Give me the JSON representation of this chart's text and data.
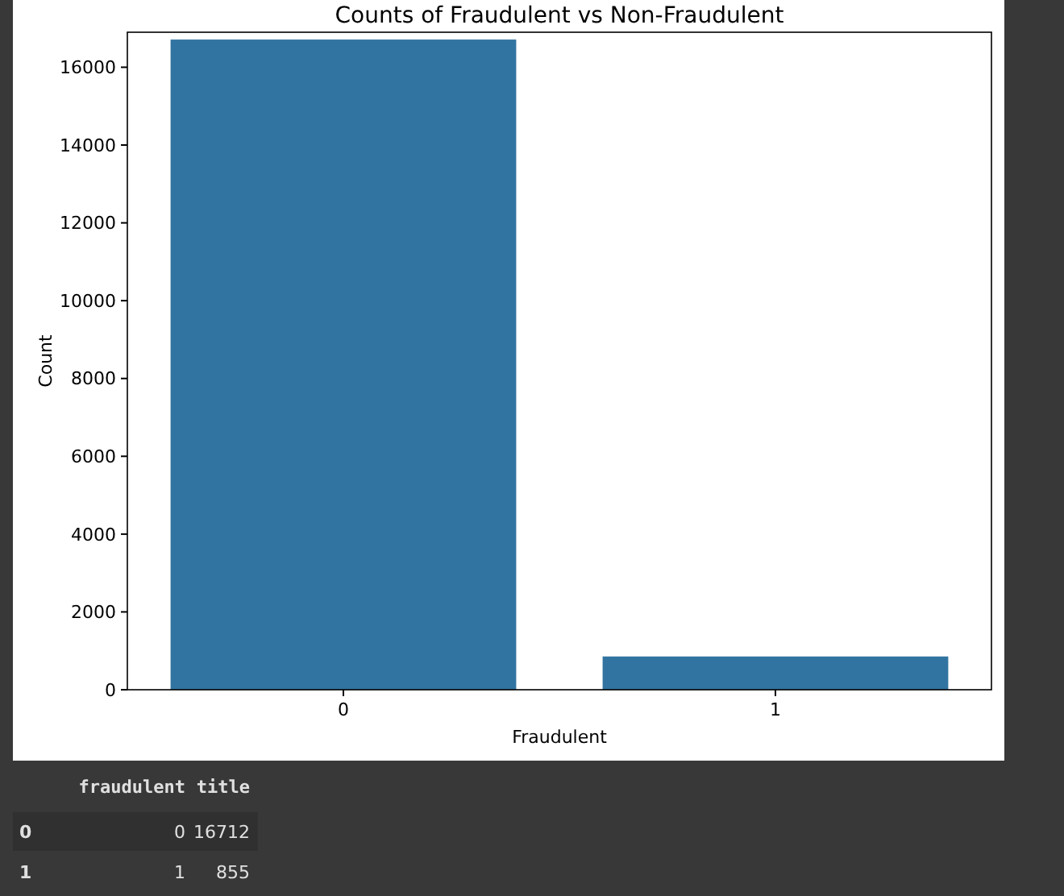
{
  "chart_data": {
    "type": "bar",
    "title": "Counts of Fraudulent vs Non-Fraudulent",
    "xlabel": "Fraudulent",
    "ylabel": "Count",
    "categories": [
      "0",
      "1"
    ],
    "values": [
      16712,
      855
    ],
    "color": "#3274a1",
    "ylim": [
      0,
      16900
    ],
    "yticks": [
      0,
      2000,
      4000,
      6000,
      8000,
      10000,
      12000,
      14000,
      16000
    ],
    "annotations": [
      "fraudulent",
      "title",
      "0",
      "0",
      "16712",
      "1",
      "1",
      "855"
    ]
  }
}
